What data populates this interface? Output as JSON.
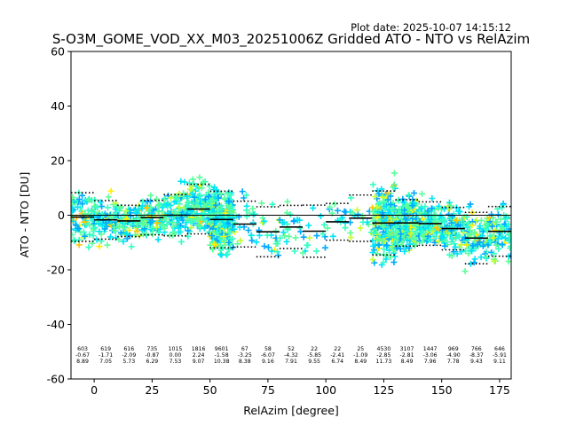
{
  "chart_data": {
    "type": "scatter",
    "title": "S-O3M_GOME_VOD_XX_M03_20251006Z Gridded ATO - NTO vs RelAzim",
    "plot_date": "Plot date: 2025-10-07 14:15:12",
    "xlabel": "RelAzim [degree]",
    "ylabel": "ATO - NTO [DU]",
    "xlim": [
      -10,
      180
    ],
    "ylim": [
      -60,
      60
    ],
    "xticks": [
      "0",
      "25",
      "50",
      "75",
      "100",
      "125",
      "150",
      "175"
    ],
    "yticks": [
      "-60",
      "-40",
      "-20",
      "0",
      "20",
      "40",
      "60"
    ],
    "zero_line": 0,
    "bin_width": 10,
    "bins": [
      {
        "center": -5,
        "count": "603",
        "mean": "-0.67",
        "std": "8.89"
      },
      {
        "center": 5,
        "count": "619",
        "mean": "-1.71",
        "std": "7.05"
      },
      {
        "center": 15,
        "count": "616",
        "mean": "-2.09",
        "std": "5.73"
      },
      {
        "center": 25,
        "count": "735",
        "mean": "-0.87",
        "std": "6.29"
      },
      {
        "center": 35,
        "count": "1015",
        "mean": "0.00",
        "std": "7.53"
      },
      {
        "center": 45,
        "count": "1816",
        "mean": "2.24",
        "std": "9.07"
      },
      {
        "center": 55,
        "count": "9601",
        "mean": "-1.58",
        "std": "10.38"
      },
      {
        "center": 65,
        "count": "67",
        "mean": "-3.25",
        "std": "8.38"
      },
      {
        "center": 75,
        "count": "58",
        "mean": "-6.07",
        "std": "9.16"
      },
      {
        "center": 85,
        "count": "52",
        "mean": "-4.32",
        "std": "7.91"
      },
      {
        "center": 95,
        "count": "22",
        "mean": "-5.85",
        "std": "9.55"
      },
      {
        "center": 105,
        "count": "22",
        "mean": "-2.41",
        "std": "6.74"
      },
      {
        "center": 115,
        "count": "25",
        "mean": "-1.09",
        "std": "8.49"
      },
      {
        "center": 125,
        "count": "4530",
        "mean": "-2.85",
        "std": "11.73"
      },
      {
        "center": 135,
        "count": "3107",
        "mean": "-2.81",
        "std": "8.49"
      },
      {
        "center": 145,
        "count": "1447",
        "mean": "-3.06",
        "std": "7.96"
      },
      {
        "center": 155,
        "count": "969",
        "mean": "-4.90",
        "std": "7.78"
      },
      {
        "center": 165,
        "count": "766",
        "mean": "-8.37",
        "std": "9.43"
      },
      {
        "center": 175,
        "count": "646",
        "mean": "-5.91",
        "std": "9.11"
      }
    ],
    "scatter_colors": [
      "#5cff9a",
      "#33ffc4",
      "#00e4f8",
      "#00a8ff",
      "#c4ff33",
      "#ffee00",
      "#ffc400",
      "#0000ff"
    ],
    "mean_line_color": "#000000",
    "std_line_color": "#000000"
  }
}
